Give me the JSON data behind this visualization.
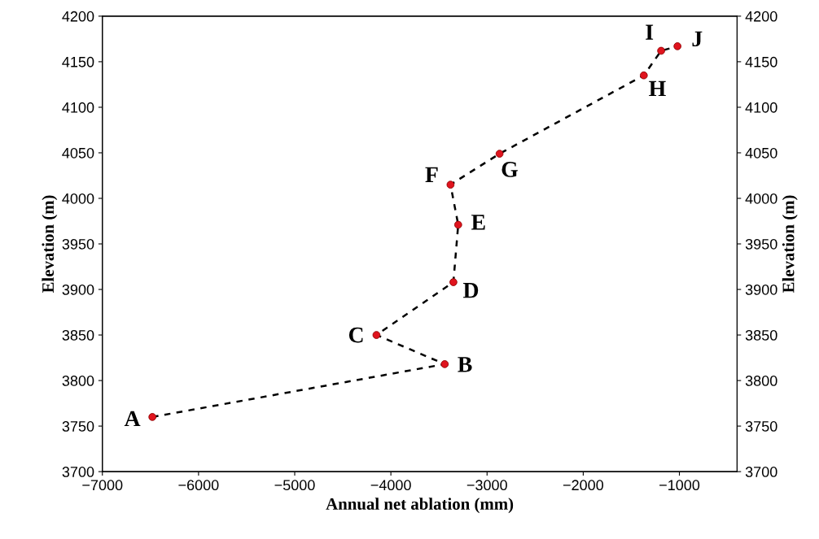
{
  "chart_data": {
    "type": "scatter",
    "xlabel": "Annual net ablation (mm)",
    "ylabel": "Elevation (m)",
    "y2label": "Elevation (m)",
    "x": [
      -6480,
      -3440,
      -4150,
      -3350,
      -3300,
      -3380,
      -2870,
      -1370,
      -1190,
      -1020
    ],
    "series": [
      {
        "type": "line",
        "color": "#000000",
        "line_style": "dashed",
        "marker": "none",
        "values": [
          3760,
          3818,
          3850,
          3908,
          3971,
          4015,
          4049,
          4135,
          4162,
          4167
        ]
      },
      {
        "type": "scatter",
        "color": "#e0141e",
        "marker": "circle",
        "values": [
          3760,
          3818,
          3850,
          3908,
          3971,
          4015,
          4049,
          4135,
          4162,
          4167
        ]
      }
    ],
    "annotations": [
      {
        "text": "A",
        "x": -6480,
        "y": 3760
      },
      {
        "text": "B",
        "x": -3440,
        "y": 3818
      },
      {
        "text": "C",
        "x": -4150,
        "y": 3850
      },
      {
        "text": "D",
        "x": -3350,
        "y": 3908
      },
      {
        "text": "E",
        "x": -3300,
        "y": 3971
      },
      {
        "text": "F",
        "x": -3380,
        "y": 4015
      },
      {
        "text": "G",
        "x": -2870,
        "y": 4049
      },
      {
        "text": "H",
        "x": -1370,
        "y": 4135
      },
      {
        "text": "I",
        "x": -1190,
        "y": 4162
      },
      {
        "text": "J",
        "x": -1020,
        "y": 4167
      }
    ],
    "xlim": [
      -7000,
      -400
    ],
    "xticks": [
      {
        "value": -7000,
        "label": "−7000"
      },
      {
        "value": -6000,
        "label": "−6000"
      },
      {
        "value": -5000,
        "label": "−5000"
      },
      {
        "value": -4000,
        "label": "−4000"
      },
      {
        "value": -3000,
        "label": "−3000"
      },
      {
        "value": -2000,
        "label": "−2000"
      },
      {
        "value": -1000,
        "label": "−1000"
      }
    ],
    "ylim": [
      3700,
      4200
    ],
    "yticks": [
      3700,
      3750,
      3800,
      3850,
      3900,
      3950,
      4000,
      4050,
      4100,
      4150,
      4200
    ],
    "y2lim": [
      3700,
      4200
    ],
    "y2ticks": [
      3700,
      3750,
      3800,
      3850,
      3900,
      3950,
      4000,
      4050,
      4100,
      4150,
      4200
    ],
    "grid": false,
    "legend": false
  }
}
